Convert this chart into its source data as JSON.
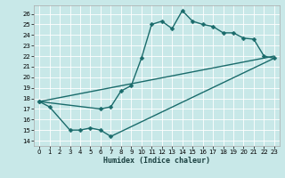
{
  "xlabel": "Humidex (Indice chaleur)",
  "bg_color": "#c8e8e8",
  "line_color": "#1a6b6b",
  "markersize": 2.5,
  "linewidth": 1.0,
  "xlim": [
    -0.5,
    23.5
  ],
  "ylim": [
    13.5,
    26.8
  ],
  "xticks": [
    0,
    1,
    2,
    3,
    4,
    5,
    6,
    7,
    8,
    9,
    10,
    11,
    12,
    13,
    14,
    15,
    16,
    17,
    18,
    19,
    20,
    21,
    22,
    23
  ],
  "yticks": [
    14,
    15,
    16,
    17,
    18,
    19,
    20,
    21,
    22,
    23,
    24,
    25,
    26
  ],
  "line1_x": [
    0,
    1,
    3,
    4,
    5,
    6,
    7
  ],
  "line1_y": [
    17.7,
    17.2,
    15.0,
    15.0,
    15.2,
    15.0,
    14.4
  ],
  "line2_x": [
    0,
    6,
    7,
    8,
    9,
    10,
    11,
    12,
    13,
    14,
    15,
    16,
    17,
    18,
    19,
    20,
    21,
    22,
    23
  ],
  "line2_y": [
    17.7,
    17.0,
    17.2,
    18.7,
    19.2,
    21.8,
    25.0,
    25.3,
    24.6,
    26.3,
    25.3,
    25.0,
    24.8,
    24.2,
    24.2,
    23.7,
    23.6,
    22.0,
    21.8
  ],
  "line3_x": [
    0,
    23
  ],
  "line3_y": [
    17.7,
    22.0
  ],
  "line4_x": [
    7,
    23
  ],
  "line4_y": [
    14.4,
    21.8
  ]
}
